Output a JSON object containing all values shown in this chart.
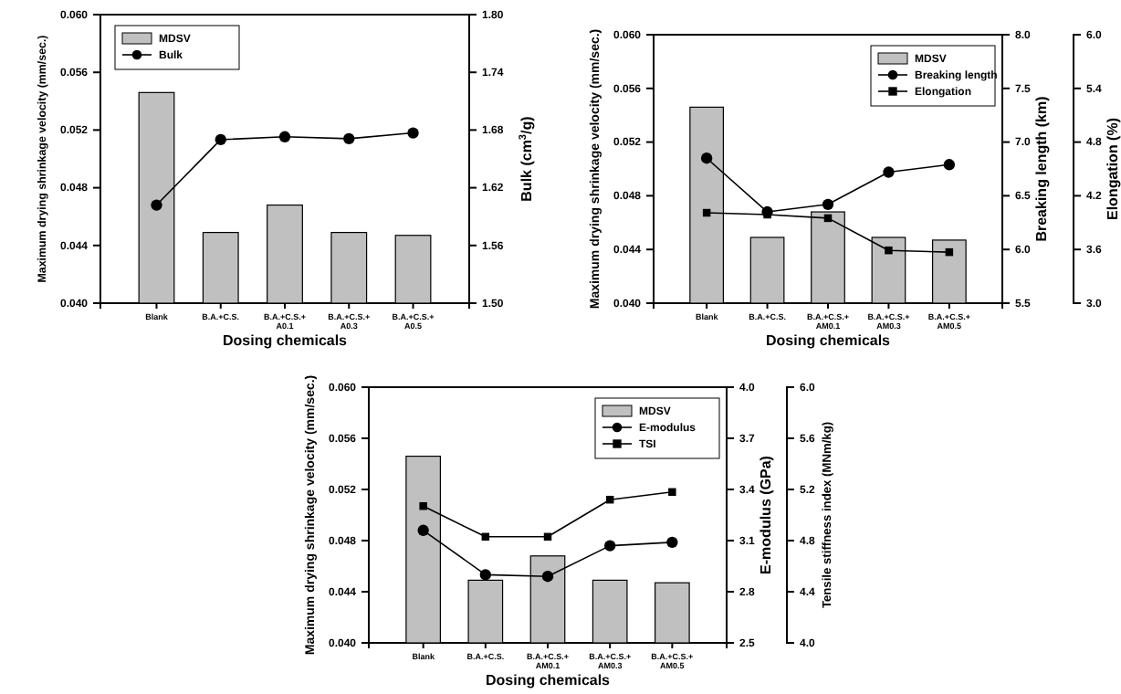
{
  "chart_data": [
    {
      "type": "bar",
      "categories": [
        "Blank",
        "B.A.+C.S.",
        "B.A.+C.S.+A0.1",
        "B.A.+C.S.+A0.3",
        "B.A.+C.S.+A0.5"
      ],
      "xlabel": "Dosing chemicals",
      "ylabel": "Maximum drying shrinkage velocity (mm/sec.)",
      "y2label": "Bulk (cm$^{3}$/g)",
      "legend": "top left",
      "series": [
        {
          "name": "MDSV",
          "color": "#c0c0c0",
          "values": [
            0.0546,
            0.0449,
            0.0468,
            0.0449,
            0.0447
          ]
        },
        {
          "name": "Bulk",
          "type": "line",
          "axis": "y2",
          "color": "#000000",
          "marker": "circle",
          "values": [
            1.602,
            1.67,
            1.673,
            1.671,
            1.677
          ]
        }
      ],
      "ylim": [
        0.04,
        0.06
      ],
      "yticks": [
        {
          "value": 0.04,
          "label": "0.040"
        },
        {
          "value": 0.044,
          "label": "0.044"
        },
        {
          "value": 0.048,
          "label": "0.048"
        },
        {
          "value": 0.052,
          "label": "0.052"
        },
        {
          "value": 0.056,
          "label": "0.056"
        },
        {
          "value": 0.06,
          "label": "0.060"
        }
      ],
      "y2lim": [
        1.5,
        1.8
      ],
      "y2ticks": [
        {
          "value": 1.5,
          "label": "1.50"
        },
        {
          "value": 1.56,
          "label": "1.56"
        },
        {
          "value": 1.62,
          "label": "1.62"
        },
        {
          "value": 1.68,
          "label": "1.68"
        },
        {
          "value": 1.74,
          "label": "1.74"
        },
        {
          "value": 1.8,
          "label": "1.80"
        }
      ]
    },
    {
      "type": "bar",
      "categories": [
        "Blank",
        "B.A.+C.S.",
        "B.A.+C.S.+AM0.1",
        "B.A.+C.S.+AM0.3",
        "B.A.+C.S.+AM0.5"
      ],
      "xlabel": "Dosing chemicals",
      "ylabel": "Maximum drying shrinkage velocity (mm/sec.)",
      "y2label": "Breaking length (km)",
      "y3label": "Elongation (%)",
      "legend": "top right",
      "series": [
        {
          "name": "MDSV",
          "color": "#c0c0c0",
          "values": [
            0.0546,
            0.0449,
            0.0468,
            0.0449,
            0.0447
          ]
        },
        {
          "name": "Breaking length",
          "type": "line",
          "axis": "y2",
          "color": "#000000",
          "marker": "circle",
          "values": [
            6.85,
            6.35,
            6.42,
            6.72,
            6.79
          ]
        },
        {
          "name": "Elongation",
          "type": "line",
          "axis": "y3",
          "color": "#000000",
          "marker": "square",
          "values": [
            4.01,
            3.99,
            3.95,
            3.59,
            3.57
          ]
        }
      ],
      "ylim": [
        0.04,
        0.06
      ],
      "yticks": [
        {
          "value": 0.04,
          "label": "0.040"
        },
        {
          "value": 0.044,
          "label": "0.044"
        },
        {
          "value": 0.048,
          "label": "0.048"
        },
        {
          "value": 0.052,
          "label": "0.052"
        },
        {
          "value": 0.056,
          "label": "0.056"
        },
        {
          "value": 0.06,
          "label": "0.060"
        }
      ],
      "y2lim": [
        5.5,
        8.0
      ],
      "y2ticks": [
        5.5,
        {
          "value": 6,
          "label": "6.0"
        },
        6.5,
        {
          "value": 7,
          "label": "7.0"
        },
        7.5,
        {
          "value": 8,
          "label": "8.0"
        }
      ],
      "y3lim": [
        3.0,
        6.0
      ],
      "y3ticks": [
        {
          "value": 3,
          "label": "3.0"
        },
        3.6,
        4.2,
        4.8,
        5.4,
        {
          "value": 6,
          "label": "6.0"
        }
      ]
    },
    {
      "type": "bar",
      "categories": [
        "Blank",
        "B.A.+C.S.",
        "B.A.+C.S.+AM0.1",
        "B.A.+C.S.+AM0.3",
        "B.A.+C.S.+AM0.5"
      ],
      "xlabel": "Dosing chemicals",
      "ylabel": "Maximum drying shrinkage velocity (mm/sec.)",
      "y2label": "E-modulus (GPa)",
      "y3label": "Tensile stiffness index (MNm/kg)",
      "legend": "top right",
      "series": [
        {
          "name": "MDSV",
          "color": "#c0c0c0",
          "values": [
            0.0546,
            0.0449,
            0.0468,
            0.0449,
            0.0447
          ]
        },
        {
          "name": "E-modulus",
          "type": "line",
          "axis": "y2",
          "color": "#000000",
          "marker": "circle",
          "values": [
            3.16,
            2.9,
            2.89,
            3.07,
            3.09
          ]
        },
        {
          "name": "TSI",
          "type": "line",
          "axis": "y3",
          "color": "#000000",
          "marker": "square",
          "values": [
            5.07,
            4.83,
            4.83,
            5.12,
            5.18
          ]
        }
      ],
      "ylim": [
        0.04,
        0.06
      ],
      "yticks": [
        {
          "value": 0.04,
          "label": "0.040"
        },
        {
          "value": 0.044,
          "label": "0.044"
        },
        {
          "value": 0.048,
          "label": "0.048"
        },
        {
          "value": 0.052,
          "label": "0.052"
        },
        {
          "value": 0.056,
          "label": "0.056"
        },
        {
          "value": 0.06,
          "label": "0.060"
        }
      ],
      "y2lim": [
        2.5,
        4.0
      ],
      "y2ticks": [
        2.5,
        2.8,
        3.1,
        3.4,
        3.7,
        {
          "value": 4,
          "label": "4.0"
        }
      ],
      "y3lim": [
        4.0,
        6.0
      ],
      "y3ticks": [
        {
          "value": 4,
          "label": "4.0"
        },
        4.4,
        4.8,
        5.2,
        5.6,
        {
          "value": 6,
          "label": "6.0"
        }
      ]
    }
  ]
}
